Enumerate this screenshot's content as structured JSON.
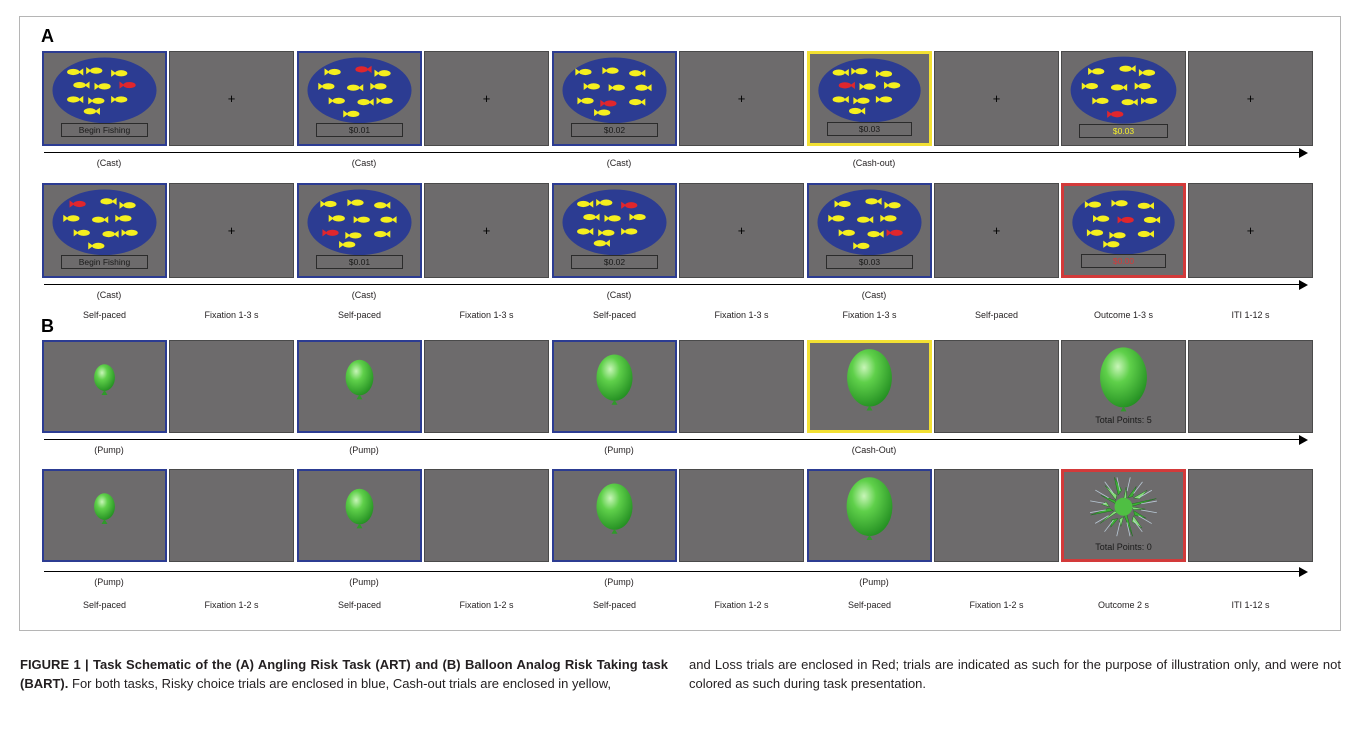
{
  "figure": {
    "panel_a_letter": "A",
    "panel_b_letter": "B"
  },
  "colors": {
    "frame_gray": "#6d6b6c",
    "risky_blue": "#2c3c92",
    "cashout_yellow": "#f2e033",
    "loss_red": "#d33a3a",
    "pond_blue": "#2c3c92",
    "fish_yellow": "#f5ef1e",
    "fish_red": "#e0262d",
    "balloon_green": "#43b13b"
  },
  "panel_a": {
    "rows": [
      {
        "frames": [
          {
            "type": "pond",
            "border": "blue",
            "box_text": "Begin Fishing",
            "box_color": "dark",
            "red_fish": true
          },
          {
            "type": "fixation",
            "border": "none",
            "cross": "+"
          },
          {
            "type": "pond",
            "border": "blue",
            "box_text": "$0.01",
            "box_color": "dark",
            "red_fish": true
          },
          {
            "type": "fixation",
            "border": "none",
            "cross": "+"
          },
          {
            "type": "pond",
            "border": "blue",
            "box_text": "$0.02",
            "box_color": "dark",
            "red_fish": true
          },
          {
            "type": "fixation",
            "border": "none",
            "cross": "+"
          },
          {
            "type": "pond",
            "border": "yellow",
            "box_text": "$0.03",
            "box_color": "dark",
            "red_fish": true
          },
          {
            "type": "fixation",
            "border": "none",
            "cross": "+"
          },
          {
            "type": "pond",
            "border": "none",
            "box_text": "$0.03",
            "box_color": "yellow",
            "red_fish": true
          },
          {
            "type": "fixation",
            "border": "none",
            "cross": "+"
          }
        ],
        "actions": [
          "(Cast)",
          "(Cast)",
          "(Cast)",
          "(Cash-out)"
        ]
      },
      {
        "frames": [
          {
            "type": "pond",
            "border": "blue",
            "box_text": "Begin Fishing",
            "box_color": "dark",
            "red_fish": true
          },
          {
            "type": "fixation",
            "border": "none",
            "cross": "+"
          },
          {
            "type": "pond",
            "border": "blue",
            "box_text": "$0.01",
            "box_color": "dark",
            "red_fish": true
          },
          {
            "type": "fixation",
            "border": "none",
            "cross": "+"
          },
          {
            "type": "pond",
            "border": "blue",
            "box_text": "$0.02",
            "box_color": "dark",
            "red_fish": true
          },
          {
            "type": "fixation",
            "border": "none",
            "cross": "+"
          },
          {
            "type": "pond",
            "border": "blue",
            "box_text": "$0.03",
            "box_color": "dark",
            "red_fish": true
          },
          {
            "type": "fixation",
            "border": "none",
            "cross": "+"
          },
          {
            "type": "pond",
            "border": "red",
            "box_text": "$0.00",
            "box_color": "red",
            "red_fish": true
          },
          {
            "type": "fixation",
            "border": "none",
            "cross": "+"
          }
        ],
        "actions": [
          "(Cast)",
          "(Cast)",
          "(Cast)",
          "(Cast)"
        ]
      }
    ],
    "timing_labels": [
      "Self-paced",
      "Fixation 1-3 s",
      "Self-paced",
      "Fixation 1-3 s",
      "Self-paced",
      "Fixation 1-3 s",
      "Fixation 1-3 s",
      "Self-paced",
      "Outcome 1-3 s",
      "ITI 1-12 s"
    ]
  },
  "panel_b": {
    "rows": [
      {
        "frames": [
          {
            "type": "balloon",
            "border": "blue",
            "size": 0.3
          },
          {
            "type": "blank",
            "border": "none"
          },
          {
            "type": "balloon",
            "border": "blue",
            "size": 0.4
          },
          {
            "type": "blank",
            "border": "none"
          },
          {
            "type": "balloon",
            "border": "blue",
            "size": 0.52
          },
          {
            "type": "blank",
            "border": "none"
          },
          {
            "type": "balloon",
            "border": "yellow",
            "size": 0.66
          },
          {
            "type": "blank",
            "border": "none"
          },
          {
            "type": "balloon",
            "border": "none",
            "size": 0.66,
            "points_text": "Total Points: 5"
          },
          {
            "type": "blank",
            "border": "none"
          }
        ],
        "actions": [
          "(Pump)",
          "(Pump)",
          "(Pump)",
          "(Cash-Out)"
        ]
      },
      {
        "frames": [
          {
            "type": "balloon",
            "border": "blue",
            "size": 0.3
          },
          {
            "type": "blank",
            "border": "none"
          },
          {
            "type": "balloon",
            "border": "blue",
            "size": 0.4
          },
          {
            "type": "blank",
            "border": "none"
          },
          {
            "type": "balloon",
            "border": "blue",
            "size": 0.52
          },
          {
            "type": "blank",
            "border": "none"
          },
          {
            "type": "balloon",
            "border": "blue",
            "size": 0.66
          },
          {
            "type": "blank",
            "border": "none"
          },
          {
            "type": "popped",
            "border": "red",
            "points_text": "Total Points: 0"
          },
          {
            "type": "blank",
            "border": "none"
          }
        ],
        "actions": [
          "(Pump)",
          "(Pump)",
          "(Pump)",
          "(Pump)"
        ]
      }
    ],
    "timing_labels": [
      "Self-paced",
      "Fixation 1-2 s",
      "Self-paced",
      "Fixation 1-2 s",
      "Self-paced",
      "Fixation 1-2 s",
      "Self-paced",
      "Fixation 1-2 s",
      "Outcome 2 s",
      "ITI 1-12 s"
    ]
  },
  "caption": {
    "bold": "FIGURE 1 | Task Schematic of the (A) Angling Risk Task (ART) and (B) Balloon Analog Risk Taking task (BART).",
    "text_left": " For both tasks, Risky choice trials are enclosed in blue, Cash-out trials are enclosed in yellow,",
    "text_right": "and Loss trials are enclosed in Red; trials are indicated as such for the purpose of illustration only, and were not colored as such during task presentation."
  }
}
